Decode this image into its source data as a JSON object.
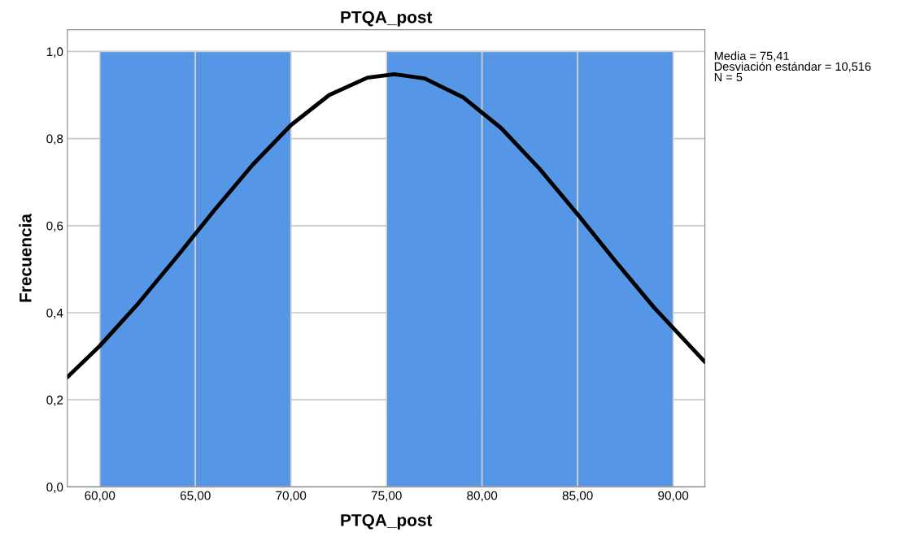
{
  "chart_data": {
    "type": "histogram",
    "title": "PTQA_post",
    "xlabel": "PTQA_post",
    "ylabel": "Frecuencia",
    "series": [
      {
        "type": "histogram",
        "bins": [
          60,
          65,
          70,
          75,
          80,
          85,
          90
        ],
        "values": [
          1,
          1,
          0,
          1,
          1,
          1
        ],
        "color": "#5596e6"
      },
      {
        "type": "line",
        "color": "#000000",
        "x": [
          58.3,
          60,
          62,
          64,
          66,
          68,
          70,
          72,
          74,
          75.41,
          77,
          79,
          81,
          83,
          85,
          87,
          89,
          91.66
        ],
        "values": [
          0.252,
          0.324,
          0.421,
          0.527,
          0.636,
          0.74,
          0.831,
          0.9,
          0.94,
          0.948,
          0.938,
          0.895,
          0.824,
          0.731,
          0.626,
          0.517,
          0.412,
          0.287
        ]
      }
    ],
    "xlim": [
      58.3,
      91.66
    ],
    "ylim": [
      0,
      1.05
    ],
    "xticks": [
      {
        "value": 60,
        "label": "60,00"
      },
      {
        "value": 65,
        "label": "65,00"
      },
      {
        "value": 70,
        "label": "70,00"
      },
      {
        "value": 75,
        "label": "75,00"
      },
      {
        "value": 80,
        "label": "80,00"
      },
      {
        "value": 85,
        "label": "85,00"
      },
      {
        "value": 90,
        "label": "90,00"
      }
    ],
    "yticks": [
      {
        "value": 0,
        "label": "0,0"
      },
      {
        "value": 0.2,
        "label": "0,2"
      },
      {
        "value": 0.4,
        "label": "0,4"
      },
      {
        "value": 0.6,
        "label": "0,6"
      },
      {
        "value": 0.8,
        "label": "0,8"
      },
      {
        "value": 1,
        "label": "1,0"
      }
    ],
    "grid": "y",
    "annotations": [
      "Media = 75,41\nDesviación estándar = 10,516\nN = 5"
    ]
  }
}
